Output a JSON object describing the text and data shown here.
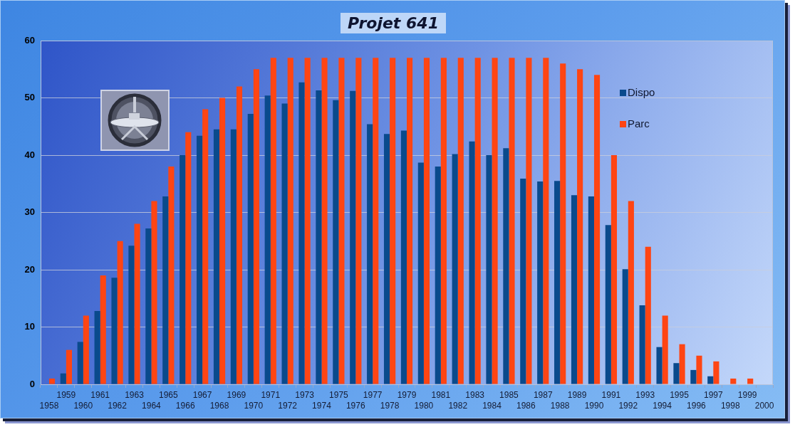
{
  "chart_data": {
    "type": "bar",
    "title": "Projet 641",
    "categories": [
      "1958",
      "1959",
      "1960",
      "1961",
      "1962",
      "1963",
      "1964",
      "1965",
      "1966",
      "1967",
      "1968",
      "1969",
      "1970",
      "1971",
      "1972",
      "1973",
      "1974",
      "1975",
      "1976",
      "1977",
      "1978",
      "1979",
      "1980",
      "1981",
      "1982",
      "1983",
      "1984",
      "1985",
      "1986",
      "1987",
      "1988",
      "1989",
      "1990",
      "1991",
      "1992",
      "1993",
      "1994",
      "1995",
      "1996",
      "1997",
      "1998",
      "1999",
      "2000"
    ],
    "series": [
      {
        "name": "Dispo",
        "color": "#0a4a8c",
        "values": [
          null,
          1.9,
          7.4,
          12.8,
          18.6,
          24.2,
          27.2,
          32.8,
          40,
          43.4,
          44.5,
          44.5,
          47.2,
          50.4,
          49,
          52.7,
          51.3,
          49.6,
          51.2,
          45.4,
          43.7,
          44.3,
          38.7,
          38,
          40.2,
          42.4,
          40,
          41.2,
          35.9,
          35.4,
          35.5,
          33,
          32.8,
          27.8,
          20.1,
          13.8,
          6.5,
          3.7,
          2.5,
          1.4,
          null,
          null,
          null
        ]
      },
      {
        "name": "Parc",
        "color": "#ff4513",
        "values": [
          1,
          6,
          12,
          19,
          25,
          28,
          32,
          38,
          44,
          48,
          50,
          52,
          55,
          57,
          57,
          57,
          57,
          57,
          57,
          57,
          57,
          57,
          57,
          57,
          57,
          57,
          57,
          57,
          57,
          57,
          56,
          55,
          54,
          40,
          32,
          24,
          12,
          7,
          5,
          4,
          1,
          1,
          null
        ]
      }
    ],
    "ylim": [
      0,
      60
    ],
    "yticks": [
      0,
      10,
      20,
      30,
      40,
      50,
      60
    ],
    "grid": "y",
    "legend": "top right"
  }
}
